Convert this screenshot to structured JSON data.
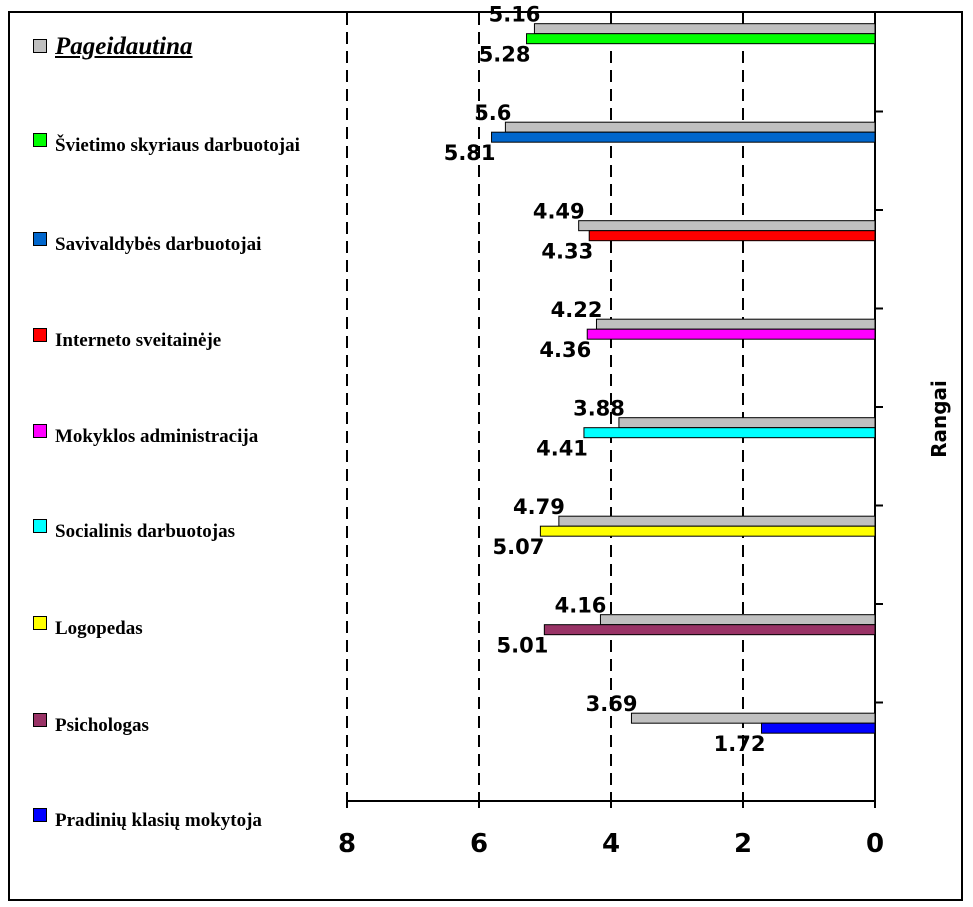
{
  "chart_data": {
    "type": "bar",
    "orientation": "horizontal",
    "x_axis": "reversed",
    "xlim": [
      8,
      0
    ],
    "xticks": [
      "8",
      "6",
      "4",
      "2",
      "0"
    ],
    "ylabel": "Rangai",
    "grid": "vertical dashed",
    "legend_position": "left",
    "legend": [
      {
        "label": "Pageidautina",
        "color": "#c0c0c0"
      },
      {
        "label": "Švietimo skyriaus darbuotojai",
        "color": "#00ff00"
      },
      {
        "label": "Savivaldybės darbuotojai",
        "color": "#0066cc"
      },
      {
        "label": "Interneto sveitainėje",
        "color": "#ff0000"
      },
      {
        "label": "Mokyklos administracija",
        "color": "#ff00ff"
      },
      {
        "label": "Socialinis darbuotojas",
        "color": "#00ffff"
      },
      {
        "label": "Logopedas",
        "color": "#ffff00"
      },
      {
        "label": "Psichologas",
        "color": "#993366"
      },
      {
        "label": "Pradinių klasių mokytoja",
        "color": "#0000ff"
      }
    ],
    "groups": [
      {
        "pageidautina": 5.16,
        "pageidautina_label": "5.16",
        "value": 5.28,
        "value_label": "5.28",
        "color": "#00ff00"
      },
      {
        "pageidautina": 5.6,
        "pageidautina_label": "5.6",
        "value": 5.81,
        "value_label": "5.81",
        "color": "#0066cc"
      },
      {
        "pageidautina": 4.49,
        "pageidautina_label": "4.49",
        "value": 4.33,
        "value_label": "4.33",
        "color": "#ff0000"
      },
      {
        "pageidautina": 4.22,
        "pageidautina_label": "4.22",
        "value": 4.36,
        "value_label": "4.36",
        "color": "#ff00ff"
      },
      {
        "pageidautina": 3.88,
        "pageidautina_label": "3.88",
        "value": 4.41,
        "value_label": "4.41",
        "color": "#00ffff"
      },
      {
        "pageidautina": 4.79,
        "pageidautina_label": "4.79",
        "value": 5.07,
        "value_label": "5.07",
        "color": "#ffff00"
      },
      {
        "pageidautina": 4.16,
        "pageidautina_label": "4.16",
        "value": 5.01,
        "value_label": "5.01",
        "color": "#993366"
      },
      {
        "pageidautina": 3.69,
        "pageidautina_label": "3.69",
        "value": 1.72,
        "value_label": "1.72",
        "color": "#0000ff"
      }
    ]
  }
}
